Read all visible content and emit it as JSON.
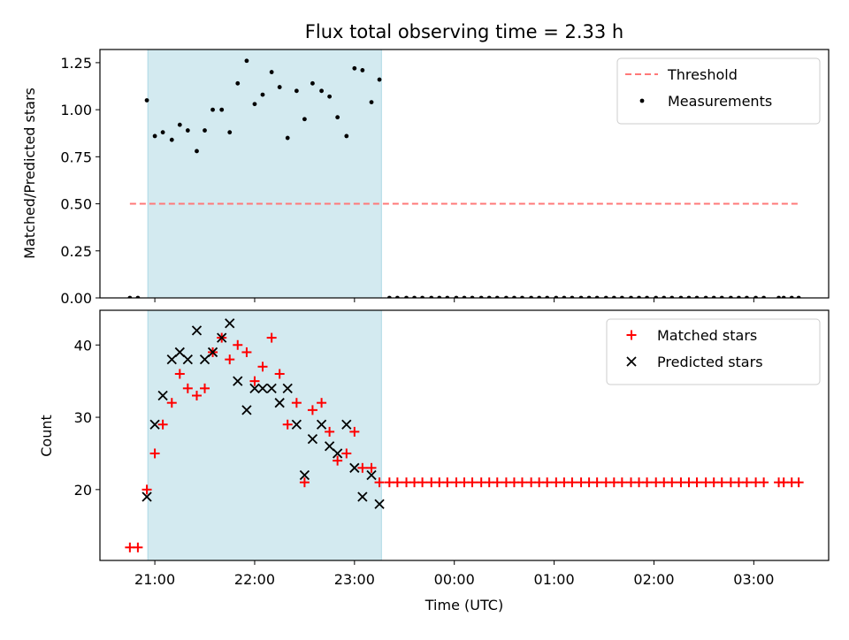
{
  "figure": {
    "title": "Flux total observing time = 2.33 h",
    "xlabel": "Time (UTC)",
    "x_tick_labels": [
      "21:00",
      "22:00",
      "23:00",
      "00:00",
      "01:00",
      "02:00",
      "03:00"
    ],
    "top_ylabel": "Matched/Predicted stars",
    "bottom_ylabel": "Count",
    "shaded_color": "#d3eaf0",
    "shaded_edge_color": "#add8e6"
  },
  "chart_data": [
    {
      "type": "scatter",
      "panel": "top",
      "ylabel": "Matched/Predicted stars",
      "x_unit": "hours since 21:00 UTC",
      "xlim": [
        -0.55,
        6.75
      ],
      "ylim": [
        0,
        1.32
      ],
      "y_ticks": [
        0.0,
        0.25,
        0.5,
        0.75,
        1.0,
        1.25
      ],
      "y_tick_labels": [
        "0.00",
        "0.25",
        "0.50",
        "0.75",
        "1.00",
        "1.25"
      ],
      "shaded_region": [
        -0.07,
        2.27
      ],
      "legend": {
        "location": "top-right",
        "entries": [
          {
            "label": "Threshold",
            "style": "dashed-line",
            "color": "#ff7878"
          },
          {
            "label": "Measurements",
            "style": "dot",
            "color": "#000000"
          }
        ]
      },
      "threshold": {
        "name": "Threshold",
        "y": 0.5,
        "x_range": [
          -0.25,
          6.45
        ],
        "color": "#ff7878"
      },
      "series": [
        {
          "name": "Measurements",
          "color": "#000000",
          "marker": "dot",
          "points": [
            [
              -0.25,
              0
            ],
            [
              -0.17,
              0
            ],
            [
              -0.08,
              1.05
            ],
            [
              0.0,
              0.86
            ],
            [
              0.08,
              0.88
            ],
            [
              0.17,
              0.84
            ],
            [
              0.25,
              0.92
            ],
            [
              0.33,
              0.89
            ],
            [
              0.42,
              0.78
            ],
            [
              0.5,
              0.89
            ],
            [
              0.58,
              1.0
            ],
            [
              0.67,
              1.0
            ],
            [
              0.75,
              0.88
            ],
            [
              0.83,
              1.14
            ],
            [
              0.92,
              1.26
            ],
            [
              1.0,
              1.03
            ],
            [
              1.08,
              1.08
            ],
            [
              1.17,
              1.2
            ],
            [
              1.25,
              1.12
            ],
            [
              1.33,
              0.85
            ],
            [
              1.42,
              1.1
            ],
            [
              1.5,
              0.95
            ],
            [
              1.58,
              1.14
            ],
            [
              1.67,
              1.1
            ],
            [
              1.75,
              1.07
            ],
            [
              1.83,
              0.96
            ],
            [
              1.92,
              0.86
            ],
            [
              2.0,
              1.22
            ],
            [
              2.08,
              1.21
            ],
            [
              2.17,
              1.04
            ],
            [
              2.25,
              1.16
            ],
            [
              2.35,
              0
            ],
            [
              2.43,
              0
            ],
            [
              2.52,
              0
            ],
            [
              2.6,
              0
            ],
            [
              2.68,
              0
            ],
            [
              2.77,
              0
            ],
            [
              2.85,
              0
            ],
            [
              2.93,
              0
            ],
            [
              3.02,
              0
            ],
            [
              3.1,
              0
            ],
            [
              3.18,
              0
            ],
            [
              3.27,
              0
            ],
            [
              3.35,
              0
            ],
            [
              3.43,
              0
            ],
            [
              3.52,
              0
            ],
            [
              3.6,
              0
            ],
            [
              3.68,
              0
            ],
            [
              3.77,
              0
            ],
            [
              3.85,
              0
            ],
            [
              3.93,
              0
            ],
            [
              4.02,
              0
            ],
            [
              4.1,
              0
            ],
            [
              4.18,
              0
            ],
            [
              4.27,
              0
            ],
            [
              4.35,
              0
            ],
            [
              4.43,
              0
            ],
            [
              4.52,
              0
            ],
            [
              4.6,
              0
            ],
            [
              4.68,
              0
            ],
            [
              4.77,
              0
            ],
            [
              4.85,
              0
            ],
            [
              4.93,
              0
            ],
            [
              5.02,
              0
            ],
            [
              5.1,
              0
            ],
            [
              5.18,
              0
            ],
            [
              5.27,
              0
            ],
            [
              5.35,
              0
            ],
            [
              5.43,
              0
            ],
            [
              5.52,
              0
            ],
            [
              5.6,
              0
            ],
            [
              5.68,
              0
            ],
            [
              5.77,
              0
            ],
            [
              5.85,
              0
            ],
            [
              5.93,
              0
            ],
            [
              6.02,
              0
            ],
            [
              6.1,
              0
            ],
            [
              6.25,
              0
            ],
            [
              6.3,
              0
            ],
            [
              6.38,
              0
            ],
            [
              6.45,
              0
            ]
          ]
        }
      ]
    },
    {
      "type": "scatter",
      "panel": "bottom",
      "xlabel": "Time (UTC)",
      "ylabel": "Count",
      "x_unit": "hours since 21:00 UTC",
      "xlim": [
        -0.55,
        6.75
      ],
      "ylim": [
        10.2,
        44.8
      ],
      "y_ticks": [
        20,
        30,
        40
      ],
      "y_tick_labels": [
        "20",
        "30",
        "40"
      ],
      "shaded_region": [
        -0.07,
        2.27
      ],
      "legend": {
        "location": "top-right",
        "entries": [
          {
            "label": "Matched stars",
            "style": "plus",
            "color": "#ff0000"
          },
          {
            "label": "Predicted stars",
            "style": "cross",
            "color": "#000000"
          }
        ]
      },
      "series": [
        {
          "name": "Matched stars",
          "color": "#ff0000",
          "marker": "plus",
          "points": [
            [
              -0.25,
              12
            ],
            [
              -0.17,
              12
            ],
            [
              -0.08,
              20
            ],
            [
              0.0,
              25
            ],
            [
              0.08,
              29
            ],
            [
              0.17,
              32
            ],
            [
              0.25,
              36
            ],
            [
              0.33,
              34
            ],
            [
              0.42,
              33
            ],
            [
              0.5,
              34
            ],
            [
              0.58,
              39
            ],
            [
              0.67,
              41
            ],
            [
              0.75,
              38
            ],
            [
              0.83,
              40
            ],
            [
              0.92,
              39
            ],
            [
              1.0,
              35
            ],
            [
              1.08,
              37
            ],
            [
              1.17,
              41
            ],
            [
              1.25,
              36
            ],
            [
              1.33,
              29
            ],
            [
              1.42,
              32
            ],
            [
              1.5,
              21
            ],
            [
              1.58,
              31
            ],
            [
              1.67,
              32
            ],
            [
              1.75,
              28
            ],
            [
              1.83,
              24
            ],
            [
              1.92,
              25
            ],
            [
              2.0,
              28
            ],
            [
              2.08,
              23
            ],
            [
              2.17,
              23
            ],
            [
              2.25,
              21
            ],
            [
              2.35,
              21
            ],
            [
              2.43,
              21
            ],
            [
              2.52,
              21
            ],
            [
              2.6,
              21
            ],
            [
              2.68,
              21
            ],
            [
              2.77,
              21
            ],
            [
              2.85,
              21
            ],
            [
              2.93,
              21
            ],
            [
              3.02,
              21
            ],
            [
              3.1,
              21
            ],
            [
              3.18,
              21
            ],
            [
              3.27,
              21
            ],
            [
              3.35,
              21
            ],
            [
              3.43,
              21
            ],
            [
              3.52,
              21
            ],
            [
              3.6,
              21
            ],
            [
              3.68,
              21
            ],
            [
              3.77,
              21
            ],
            [
              3.85,
              21
            ],
            [
              3.93,
              21
            ],
            [
              4.02,
              21
            ],
            [
              4.1,
              21
            ],
            [
              4.18,
              21
            ],
            [
              4.27,
              21
            ],
            [
              4.35,
              21
            ],
            [
              4.43,
              21
            ],
            [
              4.52,
              21
            ],
            [
              4.6,
              21
            ],
            [
              4.68,
              21
            ],
            [
              4.77,
              21
            ],
            [
              4.85,
              21
            ],
            [
              4.93,
              21
            ],
            [
              5.02,
              21
            ],
            [
              5.1,
              21
            ],
            [
              5.18,
              21
            ],
            [
              5.27,
              21
            ],
            [
              5.35,
              21
            ],
            [
              5.43,
              21
            ],
            [
              5.52,
              21
            ],
            [
              5.6,
              21
            ],
            [
              5.68,
              21
            ],
            [
              5.77,
              21
            ],
            [
              5.85,
              21
            ],
            [
              5.93,
              21
            ],
            [
              6.02,
              21
            ],
            [
              6.1,
              21
            ],
            [
              6.25,
              21
            ],
            [
              6.3,
              21
            ],
            [
              6.38,
              21
            ],
            [
              6.45,
              21
            ]
          ]
        },
        {
          "name": "Predicted stars",
          "color": "#000000",
          "marker": "cross",
          "points": [
            [
              -0.08,
              19
            ],
            [
              0.0,
              29
            ],
            [
              0.08,
              33
            ],
            [
              0.17,
              38
            ],
            [
              0.25,
              39
            ],
            [
              0.33,
              38
            ],
            [
              0.42,
              42
            ],
            [
              0.5,
              38
            ],
            [
              0.58,
              39
            ],
            [
              0.67,
              41
            ],
            [
              0.75,
              43
            ],
            [
              0.83,
              35
            ],
            [
              0.92,
              31
            ],
            [
              1.0,
              34
            ],
            [
              1.08,
              34
            ],
            [
              1.17,
              34
            ],
            [
              1.25,
              32
            ],
            [
              1.33,
              34
            ],
            [
              1.42,
              29
            ],
            [
              1.5,
              22
            ],
            [
              1.58,
              27
            ],
            [
              1.67,
              29
            ],
            [
              1.75,
              26
            ],
            [
              1.83,
              25
            ],
            [
              1.92,
              29
            ],
            [
              2.0,
              23
            ],
            [
              2.08,
              19
            ],
            [
              2.17,
              22
            ],
            [
              2.25,
              18
            ]
          ]
        }
      ]
    }
  ]
}
